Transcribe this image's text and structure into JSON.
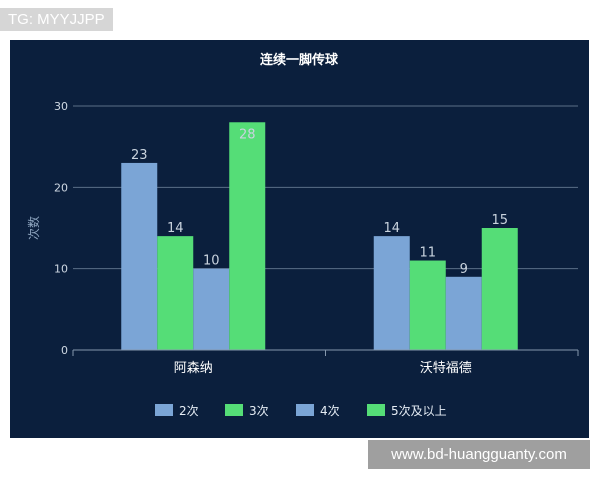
{
  "watermark_top": "TG: MYYJJPP",
  "watermark_bottom": "www.bd-huangguanty.com",
  "chart_data": {
    "type": "bar",
    "title": "连续一脚传球",
    "xlabel": "",
    "ylabel": "次数",
    "ylim": [
      0,
      30
    ],
    "yticks": [
      0,
      10,
      20,
      30
    ],
    "grid": true,
    "legend_position": "bottom",
    "categories": [
      "阿森纳",
      "沃特福德"
    ],
    "series": [
      {
        "name": "2次",
        "values": [
          23,
          14
        ],
        "color": "#7ba5d6"
      },
      {
        "name": "3次",
        "values": [
          14,
          11
        ],
        "color": "#55dd77"
      },
      {
        "name": "4次",
        "values": [
          10,
          9
        ],
        "color": "#7ba5d6"
      },
      {
        "name": "5次及以上",
        "values": [
          28,
          15
        ],
        "color": "#55dd77"
      }
    ]
  }
}
